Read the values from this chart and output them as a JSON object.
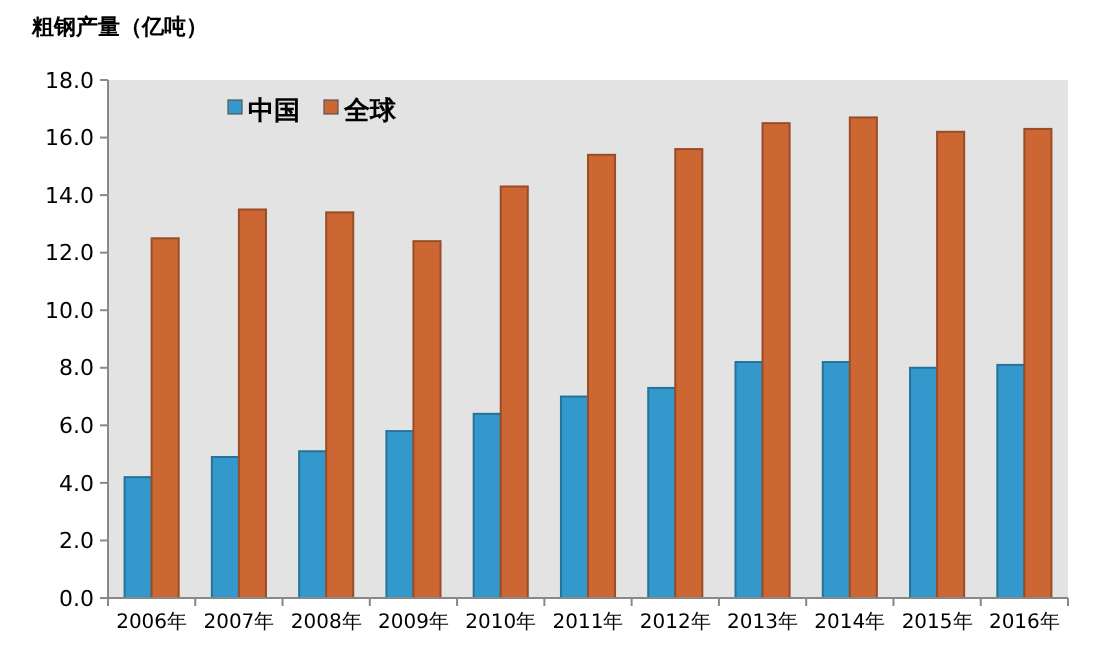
{
  "chart_data": {
    "type": "bar",
    "title": "粗钢产量（亿吨）",
    "categories": [
      "2006年",
      "2007年",
      "2008年",
      "2009年",
      "2010年",
      "2011年",
      "2012年",
      "2013年",
      "2014年",
      "2015年",
      "2016年"
    ],
    "series": [
      {
        "name": "中国",
        "color": "#3399cc",
        "values": [
          4.2,
          4.9,
          5.1,
          5.8,
          6.4,
          7.0,
          7.3,
          8.2,
          8.2,
          8.0,
          8.1
        ]
      },
      {
        "name": "全球",
        "color": "#cc6633",
        "values": [
          12.5,
          13.5,
          13.4,
          12.4,
          14.3,
          15.4,
          15.6,
          16.5,
          16.7,
          16.2,
          16.3
        ]
      }
    ],
    "ylim": [
      0,
      18
    ],
    "yticks": [
      {
        "value": 0,
        "label": "0.0"
      },
      {
        "value": 2,
        "label": "2.0"
      },
      {
        "value": 4,
        "label": "4.0"
      },
      {
        "value": 6,
        "label": "6.0"
      },
      {
        "value": 8,
        "label": "8.0"
      },
      {
        "value": 10,
        "label": "10.0"
      },
      {
        "value": 12,
        "label": "12.0"
      },
      {
        "value": 14,
        "label": "14.0"
      },
      {
        "value": 16,
        "label": "16.0"
      },
      {
        "value": 18,
        "label": "18.0"
      }
    ],
    "grid": false,
    "legend": "top left"
  }
}
